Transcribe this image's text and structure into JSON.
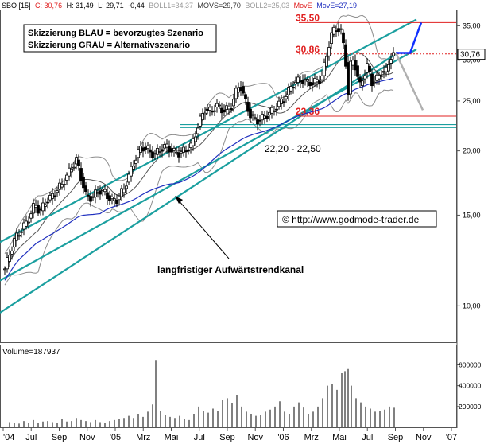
{
  "header": {
    "symbol": "SBO [15]",
    "close": "C: 30,76",
    "high": "H: 31,49",
    "low": "L: 29,71",
    "change": "-0,44",
    "boll1": "BOLL1=34,37",
    "movs": "MOVS=29,70",
    "boll2": "BOLL2=25,03",
    "move": "MovE",
    "move_value": "MovE=27,19"
  },
  "legend_box": {
    "line1": "Skizzierung BLAU = bevorzugtes Szenario",
    "line2": "Skizzierung GRAU = Alternativszenario"
  },
  "annotations": {
    "support_zone": "22,20 - 22,50",
    "channel_label": "langfristiger Aufwärtstrendkanal",
    "copyright": "© http://www.godmode-trader.de",
    "last_price_tag": "30,76"
  },
  "colors": {
    "channel": "#1a9f9f",
    "bollinger": "#8c8c8c",
    "moving_avg": "#1f2fbf",
    "horizontal_levels": "#e02020",
    "scenario_blue": "#1030ff",
    "scenario_grey": "#b0b0b0",
    "volume": "#000000",
    "price_tag": "#000000"
  },
  "chart_data": {
    "type": "candlestick",
    "x_tick_labels": [
      "'04",
      "Jul",
      "Sep",
      "Nov",
      "'05",
      "Mrz",
      "Mai",
      "Jul",
      "Sep",
      "Nov",
      "'06",
      "Mrz",
      "Mai",
      "Jul",
      "Sep",
      "Nov",
      "'07"
    ],
    "price_axis": {
      "scale": "log",
      "range": [
        8.5,
        37.5
      ],
      "tick_labels": [
        "10,00",
        "15,00",
        "20,00",
        "25,00",
        "30,00",
        "35,00"
      ],
      "tick_values": [
        10,
        15,
        20,
        25,
        30,
        35
      ]
    },
    "volume_axis": {
      "range": [
        0,
        680000
      ],
      "tick_labels": [
        "200000",
        "400000",
        "600000"
      ],
      "tick_values": [
        200000,
        400000,
        600000
      ],
      "title": "Volume=187937"
    },
    "grid": false,
    "horizontal_levels": [
      {
        "label": "35,50",
        "value": 35.5,
        "style": "solid"
      },
      {
        "label": "30,86",
        "value": 30.86,
        "style": "dashed"
      },
      {
        "label": "23,36",
        "value": 23.36,
        "style": "solid"
      }
    ],
    "support_zone_values": [
      22.2,
      22.5
    ],
    "price_path": [
      [
        0,
        11.8
      ],
      [
        6,
        12.6
      ],
      [
        12,
        13.4
      ],
      [
        18,
        13.9
      ],
      [
        26,
        14.4
      ],
      [
        32,
        15.0
      ],
      [
        38,
        15.8
      ],
      [
        44,
        15.2
      ],
      [
        52,
        16.0
      ],
      [
        58,
        16.2
      ],
      [
        64,
        16.7
      ],
      [
        72,
        17.2
      ],
      [
        80,
        18.1
      ],
      [
        90,
        19.2
      ],
      [
        96,
        17.8
      ],
      [
        102,
        16.4
      ],
      [
        110,
        16.2
      ],
      [
        118,
        16.8
      ],
      [
        126,
        16.6
      ],
      [
        134,
        16.0
      ],
      [
        142,
        16.1
      ],
      [
        150,
        16.9
      ],
      [
        158,
        18.2
      ],
      [
        166,
        19.6
      ],
      [
        172,
        20.4
      ],
      [
        180,
        20.1
      ],
      [
        188,
        19.6
      ],
      [
        196,
        20.2
      ],
      [
        204,
        20.4
      ],
      [
        212,
        19.9
      ],
      [
        220,
        19.8
      ],
      [
        228,
        20.1
      ],
      [
        236,
        20.6
      ],
      [
        244,
        22.6
      ],
      [
        252,
        24.1
      ],
      [
        260,
        23.8
      ],
      [
        266,
        24.6
      ],
      [
        272,
        24.0
      ],
      [
        278,
        24.1
      ],
      [
        284,
        24.2
      ],
      [
        290,
        25.8
      ],
      [
        296,
        27.0
      ],
      [
        302,
        25.1
      ],
      [
        308,
        23.6
      ],
      [
        314,
        23.0
      ],
      [
        320,
        22.9
      ],
      [
        326,
        23.3
      ],
      [
        332,
        23.6
      ],
      [
        338,
        24.0
      ],
      [
        344,
        24.6
      ],
      [
        350,
        25.1
      ],
      [
        356,
        26.0
      ],
      [
        362,
        26.9
      ],
      [
        368,
        27.3
      ],
      [
        374,
        27.5
      ],
      [
        380,
        27.2
      ],
      [
        386,
        27.1
      ],
      [
        392,
        27.3
      ],
      [
        398,
        27.6
      ],
      [
        404,
        30.0
      ],
      [
        410,
        33.5
      ],
      [
        416,
        34.6
      ],
      [
        422,
        34.5
      ],
      [
        428,
        31.0
      ],
      [
        432,
        25.8
      ],
      [
        436,
        30.5
      ],
      [
        442,
        29.0
      ],
      [
        446,
        26.5
      ],
      [
        450,
        27.6
      ],
      [
        456,
        29.2
      ],
      [
        462,
        27.2
      ],
      [
        468,
        27.6
      ],
      [
        474,
        28.4
      ],
      [
        480,
        28.6
      ],
      [
        486,
        30.6
      ],
      [
        490,
        30.76
      ]
    ],
    "volume_bars": [
      [
        6,
        50000
      ],
      [
        12,
        40000
      ],
      [
        18,
        35000
      ],
      [
        24,
        60000
      ],
      [
        30,
        45000
      ],
      [
        36,
        70000
      ],
      [
        42,
        40000
      ],
      [
        48,
        55000
      ],
      [
        54,
        60000
      ],
      [
        60,
        50000
      ],
      [
        66,
        45000
      ],
      [
        72,
        80000
      ],
      [
        78,
        55000
      ],
      [
        84,
        60000
      ],
      [
        90,
        90000
      ],
      [
        96,
        70000
      ],
      [
        102,
        60000
      ],
      [
        108,
        50000
      ],
      [
        114,
        70000
      ],
      [
        120,
        50000
      ],
      [
        126,
        40000
      ],
      [
        132,
        60000
      ],
      [
        138,
        70000
      ],
      [
        144,
        80000
      ],
      [
        150,
        90000
      ],
      [
        156,
        110000
      ],
      [
        162,
        90000
      ],
      [
        168,
        130000
      ],
      [
        174,
        100000
      ],
      [
        180,
        150000
      ],
      [
        186,
        220000
      ],
      [
        190,
        640000
      ],
      [
        196,
        160000
      ],
      [
        202,
        120000
      ],
      [
        208,
        100000
      ],
      [
        214,
        90000
      ],
      [
        220,
        110000
      ],
      [
        226,
        80000
      ],
      [
        232,
        70000
      ],
      [
        238,
        130000
      ],
      [
        244,
        200000
      ],
      [
        250,
        160000
      ],
      [
        256,
        140000
      ],
      [
        262,
        180000
      ],
      [
        268,
        160000
      ],
      [
        274,
        260000
      ],
      [
        280,
        280000
      ],
      [
        286,
        230000
      ],
      [
        292,
        310000
      ],
      [
        298,
        200000
      ],
      [
        304,
        150000
      ],
      [
        310,
        130000
      ],
      [
        316,
        110000
      ],
      [
        322,
        120000
      ],
      [
        328,
        150000
      ],
      [
        334,
        170000
      ],
      [
        340,
        200000
      ],
      [
        346,
        250000
      ],
      [
        352,
        150000
      ],
      [
        358,
        130000
      ],
      [
        364,
        200000
      ],
      [
        370,
        240000
      ],
      [
        376,
        190000
      ],
      [
        382,
        130000
      ],
      [
        388,
        150000
      ],
      [
        394,
        200000
      ],
      [
        400,
        280000
      ],
      [
        406,
        400000
      ],
      [
        412,
        420000
      ],
      [
        418,
        360000
      ],
      [
        424,
        520000
      ],
      [
        428,
        540000
      ],
      [
        432,
        560000
      ],
      [
        436,
        400000
      ],
      [
        442,
        280000
      ],
      [
        448,
        240000
      ],
      [
        454,
        200000
      ],
      [
        460,
        180000
      ],
      [
        466,
        150000
      ],
      [
        472,
        160000
      ],
      [
        478,
        170000
      ],
      [
        484,
        200000
      ],
      [
        490,
        187937
      ]
    ],
    "scenario_blue": [
      [
        492,
        31.0
      ],
      [
        510,
        31.0
      ],
      [
        524,
        35.5
      ]
    ],
    "scenario_grey": [
      [
        492,
        31.0
      ],
      [
        526,
        24.0
      ]
    ]
  }
}
